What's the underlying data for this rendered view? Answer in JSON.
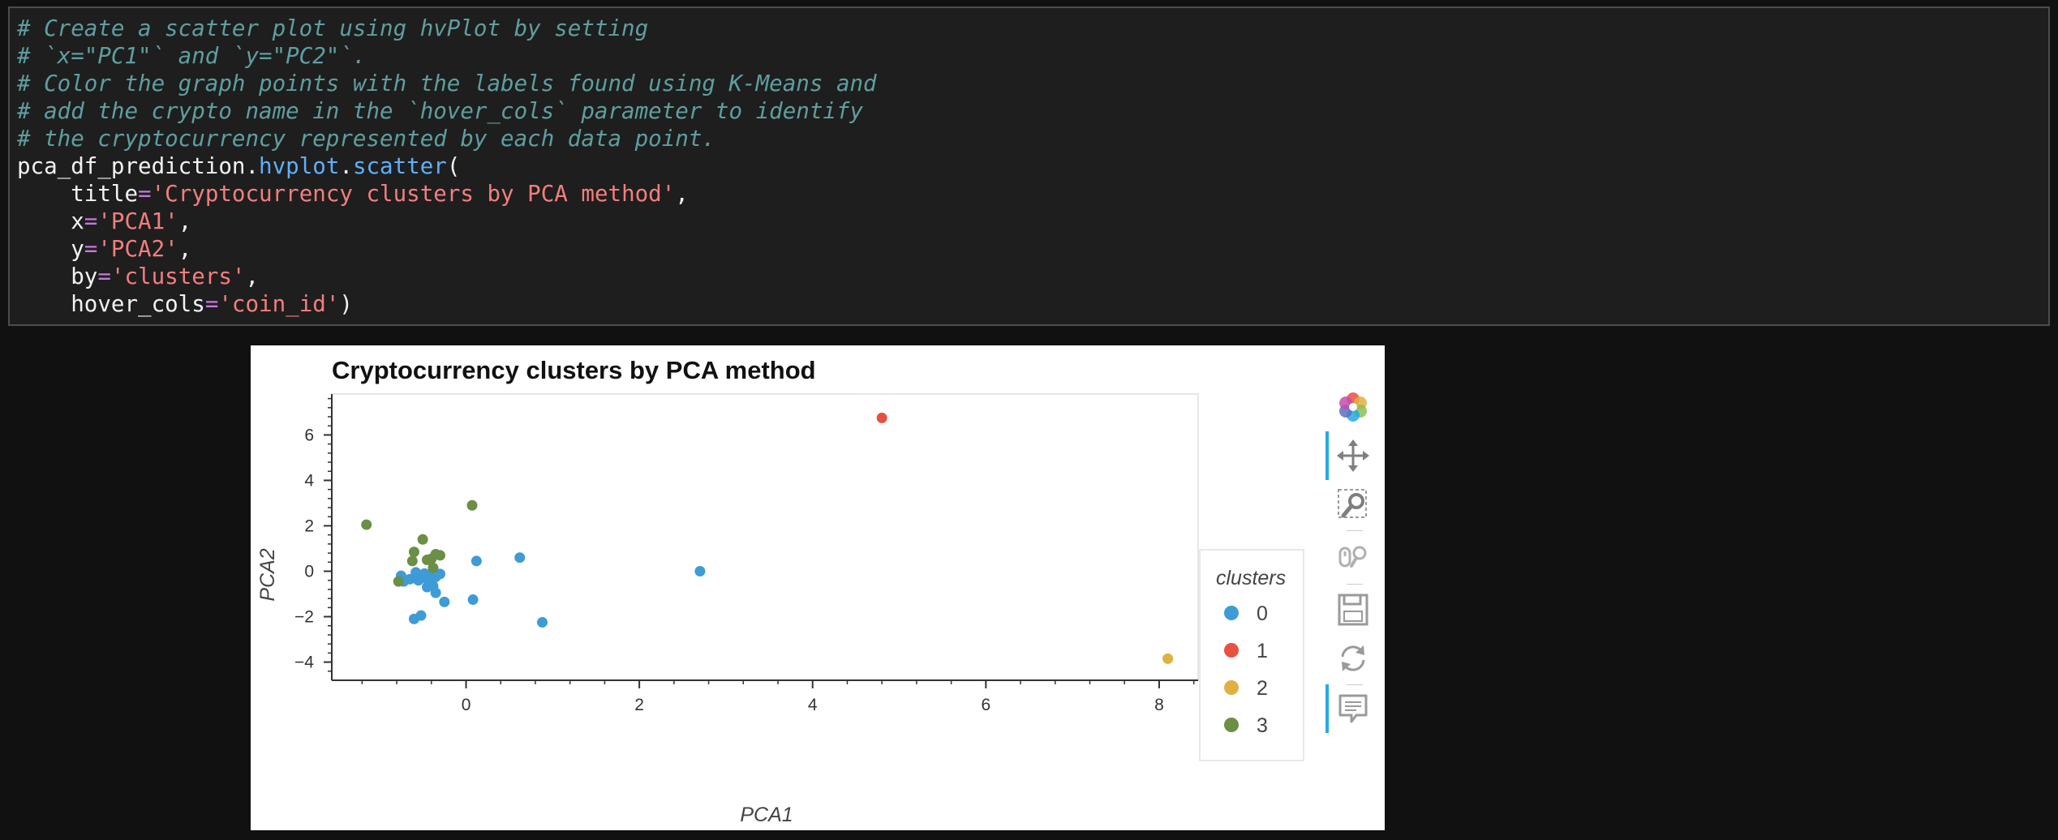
{
  "code_cell": {
    "lines": [
      "# Create a scatter plot using hvPlot by setting",
      "# `x=\"PC1\"` and `y=\"PC2\"`.",
      "# Color the graph points with the labels found using K-Means and",
      "# add the crypto name in the `hover_cols` parameter to identify",
      "# the cryptocurrency represented by each data point."
    ],
    "obj": "pca_df_prediction",
    "accessor": "hvplot",
    "method": "scatter",
    "title_kw": "title",
    "title_val": "'Cryptocurrency clusters by PCA method'",
    "x_kw": "x",
    "x_val": "'PCA1'",
    "y_kw": "y",
    "y_val": "'PCA2'",
    "by_kw": "by",
    "by_val": "'clusters'",
    "hover_kw": "hover_cols",
    "hover_val": "'coin_id'"
  },
  "colors": {
    "cluster_0": "#3f9bd6",
    "cluster_1": "#e8503f",
    "cluster_2": "#e0b040",
    "cluster_3": "#6a8f45",
    "active_tool": "#26aae1"
  },
  "toolbar": [
    {
      "icon": "bokeh-logo-icon",
      "active": false
    },
    {
      "icon": "pan-icon",
      "active": true
    },
    {
      "icon": "box-zoom-icon",
      "active": false
    },
    {
      "icon": "wheel-zoom-icon",
      "active": false
    },
    {
      "icon": "save-icon",
      "active": false
    },
    {
      "icon": "reset-icon",
      "active": false
    },
    {
      "icon": "hover-icon",
      "active": true
    }
  ],
  "chart_data": {
    "type": "scatter",
    "title": "Cryptocurrency clusters by PCA method",
    "xlabel": "PCA1",
    "ylabel": "PCA2",
    "xlim": [
      -1.55,
      8.45
    ],
    "ylim": [
      -4.8,
      7.8
    ],
    "xticks": [
      0,
      2,
      4,
      6,
      8
    ],
    "yticks": [
      -4,
      -2,
      0,
      2,
      4,
      6
    ],
    "grid": false,
    "legend_title": "clusters",
    "legend_position": "right",
    "series": [
      {
        "name": "0",
        "color": "#3f9bd6",
        "points": [
          [
            -0.75,
            -0.2
          ],
          [
            -0.72,
            -0.45
          ],
          [
            -0.65,
            -0.35
          ],
          [
            -0.6,
            -0.3
          ],
          [
            -0.58,
            -0.05
          ],
          [
            -0.55,
            -0.4
          ],
          [
            -0.5,
            -0.2
          ],
          [
            -0.48,
            -0.1
          ],
          [
            -0.45,
            -0.35
          ],
          [
            -0.42,
            -0.15
          ],
          [
            -0.4,
            -0.12
          ],
          [
            -0.35,
            -0.25
          ],
          [
            -0.3,
            -0.12
          ],
          [
            -0.45,
            -0.7
          ],
          [
            -0.38,
            -0.65
          ],
          [
            -0.35,
            -0.95
          ],
          [
            -0.25,
            -1.35
          ],
          [
            -0.6,
            -2.1
          ],
          [
            -0.52,
            -1.95
          ],
          [
            0.08,
            -1.25
          ],
          [
            0.12,
            0.45
          ],
          [
            0.62,
            0.6
          ],
          [
            0.88,
            -2.25
          ],
          [
            2.7,
            0.0
          ]
        ]
      },
      {
        "name": "1",
        "color": "#e8503f",
        "points": [
          [
            4.8,
            6.75
          ]
        ]
      },
      {
        "name": "2",
        "color": "#e0b040",
        "points": [
          [
            8.1,
            -3.85
          ]
        ]
      },
      {
        "name": "3",
        "color": "#6a8f45",
        "points": [
          [
            -1.15,
            2.05
          ],
          [
            0.07,
            2.9
          ],
          [
            -0.5,
            1.4
          ],
          [
            -0.6,
            0.85
          ],
          [
            -0.62,
            0.45
          ],
          [
            -0.45,
            0.5
          ],
          [
            -0.4,
            0.55
          ],
          [
            -0.35,
            0.75
          ],
          [
            -0.3,
            0.7
          ],
          [
            -0.38,
            0.15
          ],
          [
            -0.78,
            -0.45
          ]
        ]
      }
    ]
  }
}
